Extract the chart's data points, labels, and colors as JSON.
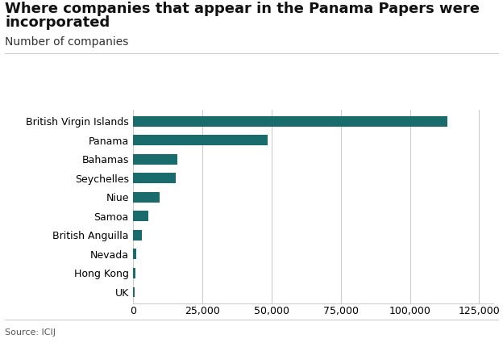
{
  "title_line1": "Where companies that appear in the Panama Papers were",
  "title_line2": "incorporated",
  "subtitle": "Number of companies",
  "source": "Source: ICIJ",
  "bar_color": "#1a6b6b",
  "background_color": "#ffffff",
  "categories": [
    "British Virgin Islands",
    "Panama",
    "Bahamas",
    "Seychelles",
    "Niue",
    "Samoa",
    "British Anguilla",
    "Nevada",
    "Hong Kong",
    "UK"
  ],
  "values": [
    113648,
    48447,
    15915,
    15422,
    9557,
    5470,
    3102,
    1024,
    767,
    401
  ],
  "xlim": [
    0,
    130000
  ],
  "xticks": [
    0,
    25000,
    50000,
    75000,
    100000,
    125000
  ],
  "grid_color": "#cccccc",
  "title_fontsize": 13,
  "subtitle_fontsize": 10,
  "tick_fontsize": 9,
  "label_fontsize": 9,
  "bbc_bg": "#7a7a7a"
}
